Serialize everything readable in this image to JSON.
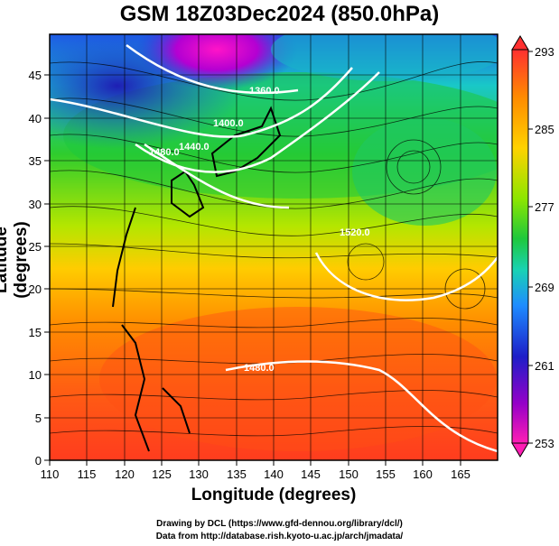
{
  "title": "GSM 18Z03Dec2024 (850.0hPa)",
  "axes": {
    "xlabel": "Longitude (degrees)",
    "ylabel": "Latitude  (degrees)",
    "xticks": [
      "110",
      "115",
      "120",
      "125",
      "130",
      "135",
      "140",
      "145",
      "150",
      "155",
      "160",
      "165"
    ],
    "yticks": [
      "0",
      "5",
      "10",
      "15",
      "20",
      "25",
      "30",
      "35",
      "40",
      "45"
    ]
  },
  "colorbar": {
    "labels": [
      "293",
      "285",
      "277",
      "269",
      "261",
      "253"
    ],
    "stops": [
      "#ff3030",
      "#ff8a00",
      "#ffd200",
      "#8ce600",
      "#1ec83c",
      "#19d2b4",
      "#1e8cff",
      "#1e1ec8",
      "#9600c8",
      "#ff1eb4"
    ]
  },
  "contours": {
    "labels": [
      "1360.0",
      "1400.0",
      "1440.0",
      "1480.0",
      "1520.0",
      "1480.0"
    ]
  },
  "credits": {
    "line1": "Drawing by DCL (https://www.gfd-dennou.org/library/dcl/)",
    "line2": "Data from http://database.rish.kyoto-u.ac.jp/arch/jmadata/"
  }
}
